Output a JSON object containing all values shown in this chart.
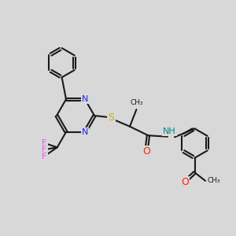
{
  "bg": "#d8d8d8",
  "bc": "#1a1a1a",
  "Nc": "#2222ff",
  "Oc": "#ff2200",
  "Sc": "#ccaa00",
  "Fc": "#ff44ff",
  "Hc": "#008888",
  "lw": 1.5,
  "dbo": 0.055,
  "fs": 8.0,
  "xlim": [
    0,
    10
  ],
  "ylim": [
    0,
    10
  ]
}
